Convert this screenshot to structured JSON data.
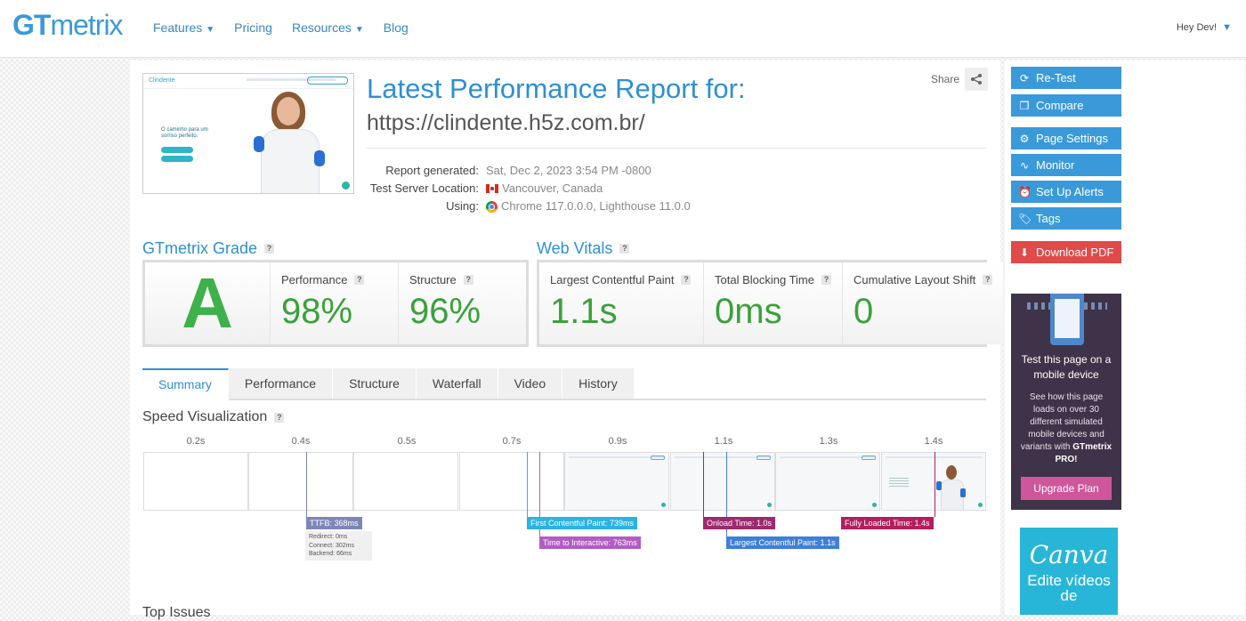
{
  "nav": {
    "logo_gt": "GT",
    "logo_metrix": "metrix",
    "items": [
      "Features",
      "Pricing",
      "Resources",
      "Blog"
    ],
    "user": "Hey Dev!"
  },
  "report": {
    "title": "Latest Performance Report for:",
    "url": "https://clindente.h5z.com.br/",
    "share": "Share",
    "generated_label": "Report generated:",
    "generated_value": "Sat, Dec 2, 2023 3:54 PM -0800",
    "location_label": "Test Server Location:",
    "location_value": "Vancouver, Canada",
    "using_label": "Using:",
    "using_value": "Chrome 117.0.0.0, Lighthouse 11.0.0"
  },
  "thumbnail": {
    "site_logo": "Clindente",
    "hero_text": "O caminho para um sorriso perfeito."
  },
  "grade": {
    "heading": "GTmetrix Grade",
    "letter": "A",
    "performance_label": "Performance",
    "performance_value": "98%",
    "structure_label": "Structure",
    "structure_value": "96%"
  },
  "vitals": {
    "heading": "Web Vitals",
    "lcp_label": "Largest Contentful Paint",
    "lcp_value": "1.1s",
    "tbt_label": "Total Blocking Time",
    "tbt_value": "0ms",
    "cls_label": "Cumulative Layout Shift",
    "cls_value": "0"
  },
  "tabs": [
    "Summary",
    "Performance",
    "Structure",
    "Waterfall",
    "Video",
    "History"
  ],
  "speed": {
    "heading": "Speed Visualization",
    "ticks": [
      "0.2s",
      "0.4s",
      "0.5s",
      "0.7s",
      "0.9s",
      "1.1s",
      "1.3s",
      "1.4s"
    ],
    "ttfb": "TTFB: 368ms",
    "ttfb_redirect": "Redirect: 0ms",
    "ttfb_connect": "Connect: 302ms",
    "ttfb_backend": "Backend: 66ms",
    "fcp": "First Contentful Paint: 739ms",
    "tti": "Time to Interactive: 763ms",
    "onload": "Onload Time: 1.0s",
    "lcp": "Largest Contentful Paint: 1.1s",
    "fully_loaded": "Fully Loaded Time: 1.4s"
  },
  "top_issues": "Top Issues",
  "sidebar": {
    "retest": "Re-Test",
    "compare": "Compare",
    "page_settings": "Page Settings",
    "monitor": "Monitor",
    "alerts": "Set Up Alerts",
    "tags": "Tags",
    "pdf": "Download PDF",
    "promo_title": "Test this page on a mobile device",
    "promo_body": "See how this page loads on over 30 different simulated mobile devices and variants with",
    "promo_brand": "GTmetrix PRO!",
    "upgrade": "Upgrade Plan",
    "canva_logo": "Canva",
    "canva_text": "Edite vídeos de"
  },
  "colors": {
    "brand_blue": "#3a9ad9",
    "grade_green": "#3fb14a",
    "pdf_red": "#e04a4a",
    "ttfb": "#7e86b8",
    "fcp": "#2ab3e3",
    "tti": "#b25cc4",
    "onload": "#9c2a6e",
    "lcp": "#3f7fd6",
    "fully_loaded": "#b21f5e"
  }
}
